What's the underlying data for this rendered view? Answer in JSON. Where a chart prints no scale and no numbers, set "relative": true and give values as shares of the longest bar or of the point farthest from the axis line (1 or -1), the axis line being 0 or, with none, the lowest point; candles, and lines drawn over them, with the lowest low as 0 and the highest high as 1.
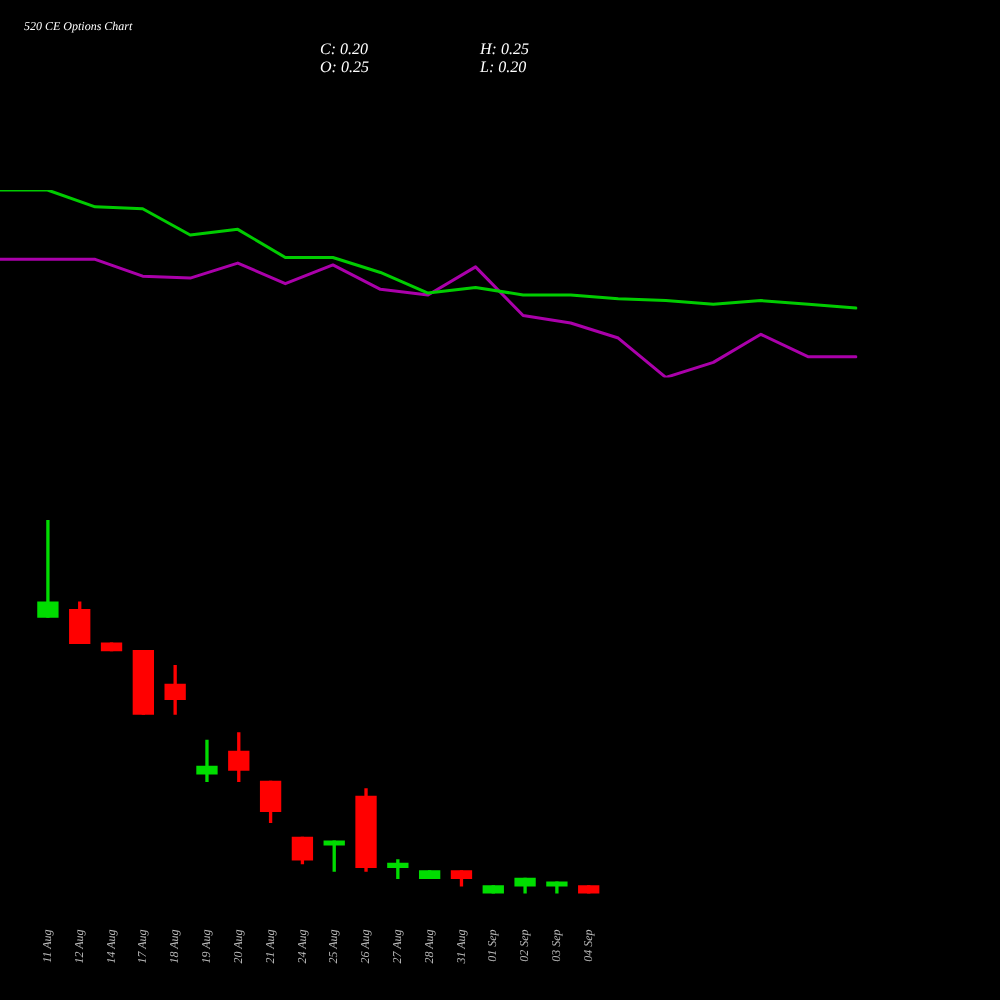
{
  "chart_data": [
    {
      "type": "line",
      "title": "520 CE Options Chart",
      "relative": true,
      "categories": [
        null,
        null,
        null,
        null,
        null,
        null,
        null,
        null,
        null,
        null,
        null,
        null,
        null,
        null,
        null,
        null,
        null,
        null,
        null
      ],
      "series": [
        {
          "color": "#00cc00",
          "values": [
            1.0,
            1.0,
            0.91,
            0.9,
            0.76,
            0.79,
            0.64,
            0.64,
            0.56,
            0.45,
            0.48,
            0.44,
            0.44,
            0.42,
            0.41,
            0.39,
            0.41,
            0.39,
            0.37
          ]
        },
        {
          "color": "#aa00aa",
          "values": [
            0.63,
            0.63,
            0.63,
            0.54,
            0.53,
            0.61,
            0.5,
            0.6,
            0.47,
            0.44,
            0.59,
            0.33,
            0.29,
            0.21,
            0,
            0.08,
            0.23,
            0.11,
            0.11
          ]
        }
      ],
      "tick_labels": false,
      "marker": "none"
    },
    {
      "type": "candlestick",
      "relative": true,
      "categories": [
        "11 Aug",
        "12 Aug",
        "14 Aug",
        "17 Aug",
        "18 Aug",
        "19 Aug",
        "20 Aug",
        "21 Aug",
        "24 Aug",
        "25 Aug",
        "26 Aug",
        "27 Aug",
        "28 Aug",
        "31 Aug",
        "01 Sep",
        "02 Sep",
        "03 Sep",
        "04 Sep"
      ],
      "ohlc": [
        [
          0.74,
          1.0,
          0.74,
          0.78
        ],
        [
          0.76,
          0.78,
          0.67,
          0.67
        ],
        [
          0.67,
          0.67,
          0.65,
          0.65
        ],
        [
          0.65,
          0.65,
          0.48,
          0.48
        ],
        [
          0.56,
          0.61,
          0.48,
          0.52
        ],
        [
          0.32,
          0.41,
          0.3,
          0.34
        ],
        [
          0.38,
          0.43,
          0.3,
          0.33
        ],
        [
          0.3,
          0.3,
          0.19,
          0.22
        ],
        [
          0.15,
          0.15,
          0.08,
          0.09
        ],
        [
          0.13,
          0.14,
          0.06,
          0.14
        ],
        [
          0.26,
          0.28,
          0.06,
          0.07
        ],
        [
          0.07,
          0.09,
          0.04,
          0.08
        ],
        [
          0.04,
          0.06,
          0.04,
          0.06
        ],
        [
          0.06,
          0.06,
          0.02,
          0.04
        ],
        [
          0,
          0.02,
          0,
          0.02
        ],
        [
          0.02,
          0.04,
          0,
          0.04
        ],
        [
          0.02,
          0.03,
          0,
          0.03
        ],
        [
          0.02,
          0.02,
          0,
          0
        ]
      ],
      "colors": [
        "#00dd00",
        "#ff0000",
        "#ff0000",
        "#ff0000",
        "#ff0000",
        "#00dd00",
        "#ff0000",
        "#ff0000",
        "#ff0000",
        "#00dd00",
        "#ff0000",
        "#00dd00",
        "#00dd00",
        "#ff0000",
        "#00dd00",
        "#00dd00",
        "#00dd00",
        "#ff0000"
      ],
      "tick_labels": "x",
      "annotations": [
        "C: 0.20",
        "H: 0.25",
        "O: 0.25",
        "L: 0.20"
      ]
    }
  ]
}
